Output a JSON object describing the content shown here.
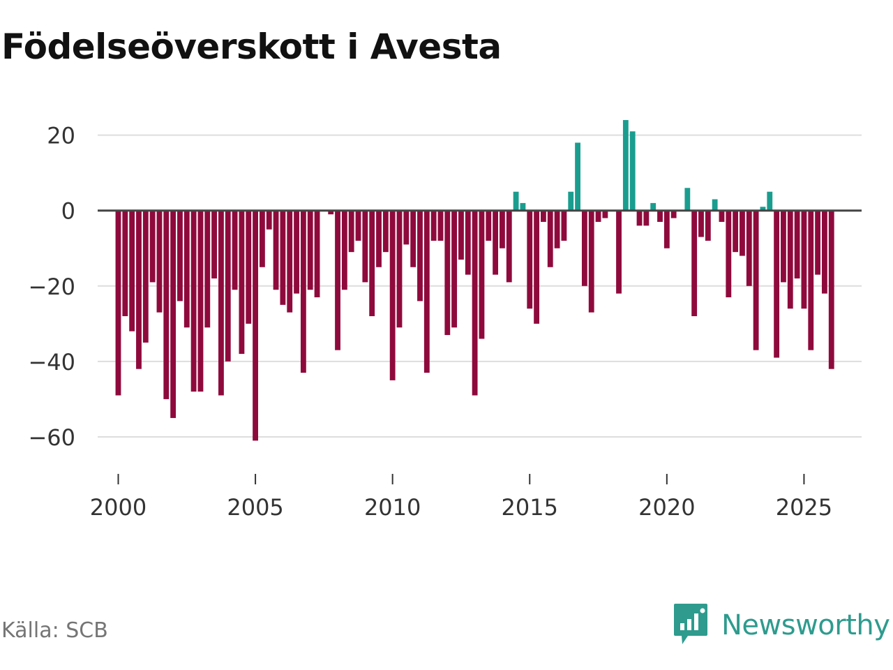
{
  "title": "Födelseöverskott i Avesta",
  "source": "Källa: SCB",
  "brand": {
    "name": "Newsworthy",
    "icon": "newsworthy-logo-icon"
  },
  "colors": {
    "positive": "#1a9d8f",
    "negative": "#8f0a3c",
    "grid": "#dddddd",
    "zero_line": "#444444",
    "brand": "#2e9b8e"
  },
  "chart_data": {
    "type": "bar",
    "title": "Födelseöverskott i Avesta",
    "xlabel": "",
    "ylabel": "",
    "xlim": [
      1999.25,
      2027.1
    ],
    "ylim": [
      -70,
      29
    ],
    "y_ticks": [
      20,
      0,
      -20,
      -40,
      -60
    ],
    "y_tick_labels": [
      "20",
      "0",
      "−20",
      "−40",
      "−60"
    ],
    "x_ticks": [
      2000,
      2005,
      2010,
      2015,
      2020,
      2025
    ],
    "x_tick_labels": [
      "2000",
      "2005",
      "2010",
      "2015",
      "2020",
      "2025"
    ],
    "grid": true,
    "legend": "none",
    "series": [
      {
        "name": "Födelseöverskott",
        "frequency": "quarterly",
        "start": "2000 Q1",
        "values": [
          -49,
          -28,
          -32,
          -42,
          -35,
          -19,
          -27,
          -50,
          -55,
          -24,
          -31,
          -48,
          -48,
          -31,
          -18,
          -49,
          -40,
          -21,
          -38,
          -30,
          -61,
          -15,
          -5,
          -21,
          -25,
          -27,
          -22,
          -43,
          -21,
          -23,
          0,
          -1,
          -37,
          -21,
          -11,
          -8,
          -19,
          -28,
          -15,
          -11,
          -45,
          -31,
          -9,
          -15,
          -24,
          -43,
          -8,
          -8,
          -33,
          -31,
          -13,
          -17,
          -49,
          -34,
          -8,
          -17,
          -10,
          -19,
          5,
          2,
          -26,
          -30,
          -3,
          -15,
          -10,
          -8,
          5,
          18,
          -20,
          -27,
          -3,
          -2,
          0,
          -22,
          24,
          21,
          -4,
          -4,
          2,
          -3,
          -10,
          -2,
          0,
          6,
          -28,
          -7,
          -8,
          3,
          -3,
          -23,
          -11,
          -12,
          -20,
          -37,
          1,
          5,
          -39,
          -19,
          -26,
          -18,
          -26,
          -37,
          -17,
          -22,
          -42
        ]
      }
    ]
  }
}
